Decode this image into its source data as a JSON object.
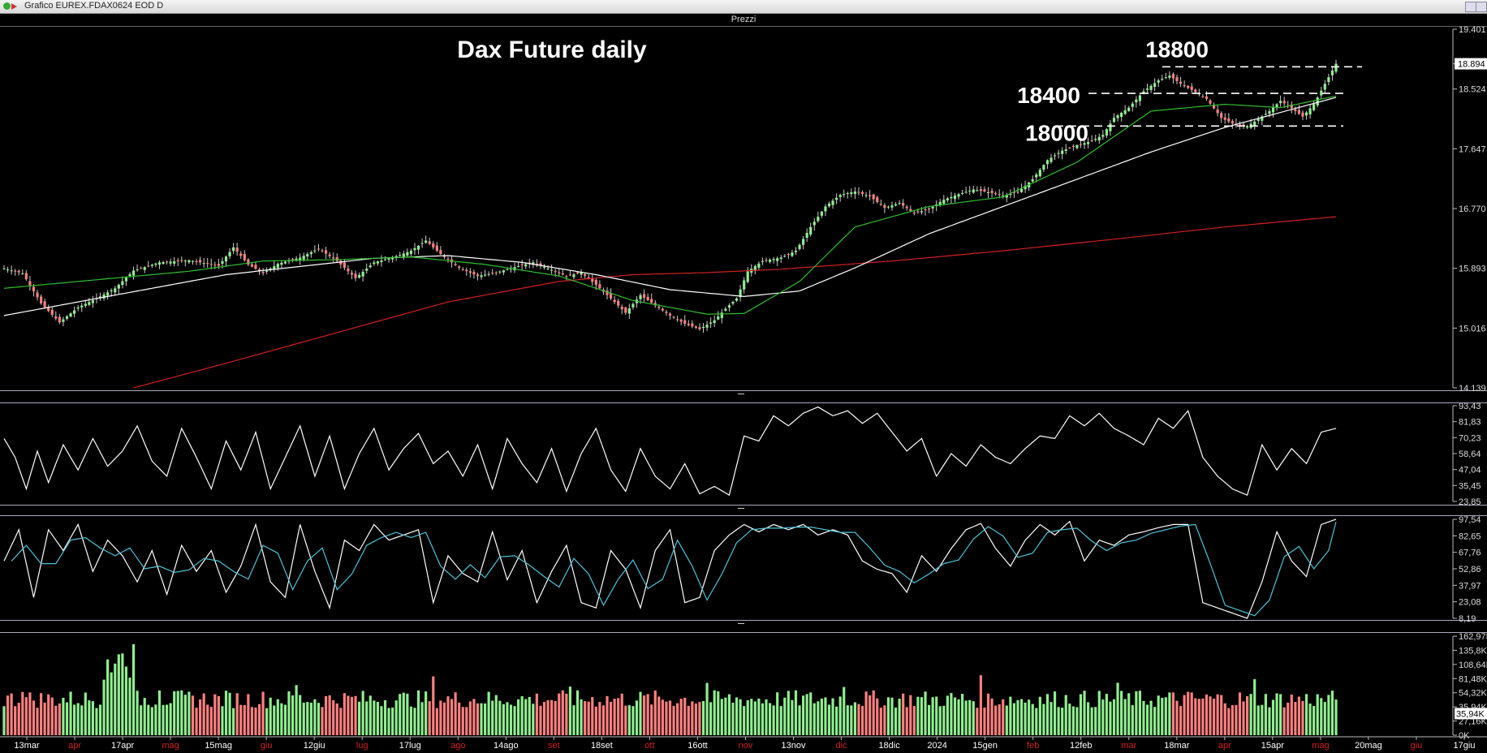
{
  "window": {
    "title": "Grafico EUREX.FDAX0624 EOD D",
    "pane_label": "Prezzi"
  },
  "colors": {
    "bull": "#90ee90",
    "bear": "#ff8080",
    "ma_short": "#2fbf2f",
    "ma_mid": "#ffffff",
    "ma_long": "#d42020",
    "osc": "#ffffff",
    "stoch_k": "#ffffff",
    "stoch_d": "#4fc3d9"
  },
  "chart_data": {
    "type": "candlestick",
    "title": "Dax Future daily",
    "x_labels": [
      {
        "label": "13mar",
        "color": "#ffffff"
      },
      {
        "label": "apr",
        "color": "#d42020"
      },
      {
        "label": "17apr",
        "color": "#ffffff"
      },
      {
        "label": "mag",
        "color": "#d42020"
      },
      {
        "label": "15mag",
        "color": "#ffffff"
      },
      {
        "label": "giu",
        "color": "#d42020"
      },
      {
        "label": "12giu",
        "color": "#ffffff"
      },
      {
        "label": "lug",
        "color": "#d42020"
      },
      {
        "label": "17lug",
        "color": "#ffffff"
      },
      {
        "label": "ago",
        "color": "#d42020"
      },
      {
        "label": "14ago",
        "color": "#ffffff"
      },
      {
        "label": "set",
        "color": "#d42020"
      },
      {
        "label": "18set",
        "color": "#ffffff"
      },
      {
        "label": "ott",
        "color": "#d42020"
      },
      {
        "label": "16ott",
        "color": "#ffffff"
      },
      {
        "label": "nov",
        "color": "#d42020"
      },
      {
        "label": "13nov",
        "color": "#ffffff"
      },
      {
        "label": "dic",
        "color": "#d42020"
      },
      {
        "label": "18dic",
        "color": "#ffffff"
      },
      {
        "label": "2024",
        "color": "#ffffff"
      },
      {
        "label": "15gen",
        "color": "#ffffff"
      },
      {
        "label": "feb",
        "color": "#d42020"
      },
      {
        "label": "12feb",
        "color": "#ffffff"
      },
      {
        "label": "mar",
        "color": "#d42020"
      },
      {
        "label": "18mar",
        "color": "#ffffff"
      },
      {
        "label": "apr",
        "color": "#d42020"
      },
      {
        "label": "15apr",
        "color": "#ffffff"
      },
      {
        "label": "mag",
        "color": "#d42020"
      },
      {
        "label": "20mag",
        "color": "#ffffff"
      },
      {
        "label": "giu",
        "color": "#d42020"
      },
      {
        "label": "17giu",
        "color": "#ffffff"
      }
    ],
    "price_axis": {
      "ticks": [
        "19.401",
        "18.894",
        "18.524",
        "17.647",
        "16.770",
        "15.893",
        "15.016",
        "14.139"
      ],
      "current": "18.894",
      "ylim": [
        14139,
        19401
      ]
    },
    "levels": [
      {
        "label": "18800",
        "value": 18850
      },
      {
        "label": "18400",
        "value": 18460
      },
      {
        "label": "18000",
        "value": 17980
      }
    ],
    "price_anchors": [
      [
        0,
        15890
      ],
      [
        5,
        15820
      ],
      [
        10,
        15380
      ],
      [
        15,
        15100
      ],
      [
        20,
        15320
      ],
      [
        25,
        15450
      ],
      [
        30,
        15600
      ],
      [
        35,
        15860
      ],
      [
        42,
        15980
      ],
      [
        50,
        16010
      ],
      [
        58,
        15930
      ],
      [
        62,
        16200
      ],
      [
        66,
        15950
      ],
      [
        70,
        15820
      ],
      [
        74,
        15960
      ],
      [
        80,
        16050
      ],
      [
        85,
        16180
      ],
      [
        90,
        16000
      ],
      [
        95,
        15750
      ],
      [
        100,
        15980
      ],
      [
        105,
        16050
      ],
      [
        110,
        16150
      ],
      [
        114,
        16300
      ],
      [
        118,
        16100
      ],
      [
        123,
        15900
      ],
      [
        128,
        15780
      ],
      [
        133,
        15830
      ],
      [
        138,
        15910
      ],
      [
        143,
        15980
      ],
      [
        148,
        15870
      ],
      [
        152,
        15780
      ],
      [
        156,
        15830
      ],
      [
        160,
        15650
      ],
      [
        164,
        15450
      ],
      [
        168,
        15240
      ],
      [
        172,
        15500
      ],
      [
        176,
        15350
      ],
      [
        180,
        15200
      ],
      [
        184,
        15080
      ],
      [
        188,
        15000
      ],
      [
        192,
        15130
      ],
      [
        195,
        15300
      ],
      [
        198,
        15450
      ],
      [
        201,
        15850
      ],
      [
        205,
        16000
      ],
      [
        210,
        16050
      ],
      [
        214,
        16150
      ],
      [
        218,
        16500
      ],
      [
        222,
        16800
      ],
      [
        226,
        16970
      ],
      [
        230,
        17020
      ],
      [
        234,
        16950
      ],
      [
        238,
        16780
      ],
      [
        242,
        16850
      ],
      [
        246,
        16700
      ],
      [
        250,
        16760
      ],
      [
        254,
        16900
      ],
      [
        258,
        16980
      ],
      [
        262,
        17050
      ],
      [
        266,
        17010
      ],
      [
        270,
        16960
      ],
      [
        274,
        17010
      ],
      [
        278,
        17200
      ],
      [
        282,
        17480
      ],
      [
        286,
        17620
      ],
      [
        290,
        17700
      ],
      [
        294,
        17760
      ],
      [
        297,
        17850
      ],
      [
        300,
        18100
      ],
      [
        304,
        18250
      ],
      [
        308,
        18490
      ],
      [
        312,
        18650
      ],
      [
        315,
        18720
      ],
      [
        318,
        18600
      ],
      [
        321,
        18510
      ],
      [
        325,
        18380
      ],
      [
        329,
        18100
      ],
      [
        333,
        17990
      ],
      [
        336,
        17980
      ],
      [
        339,
        18080
      ],
      [
        342,
        18200
      ],
      [
        345,
        18350
      ],
      [
        348,
        18240
      ],
      [
        351,
        18120
      ],
      [
        354,
        18300
      ],
      [
        357,
        18600
      ],
      [
        360,
        18894
      ]
    ],
    "ma_short_anchors": [
      [
        0,
        15600
      ],
      [
        30,
        15750
      ],
      [
        50,
        15850
      ],
      [
        70,
        16000
      ],
      [
        90,
        16020
      ],
      [
        110,
        16060
      ],
      [
        130,
        15950
      ],
      [
        150,
        15780
      ],
      [
        170,
        15420
      ],
      [
        190,
        15220
      ],
      [
        200,
        15230
      ],
      [
        215,
        15700
      ],
      [
        230,
        16500
      ],
      [
        250,
        16800
      ],
      [
        270,
        16940
      ],
      [
        290,
        17450
      ],
      [
        310,
        18200
      ],
      [
        330,
        18300
      ],
      [
        345,
        18250
      ],
      [
        360,
        18420
      ]
    ],
    "ma_mid_anchors": [
      [
        0,
        15200
      ],
      [
        20,
        15400
      ],
      [
        40,
        15600
      ],
      [
        60,
        15800
      ],
      [
        80,
        15920
      ],
      [
        100,
        16040
      ],
      [
        120,
        16080
      ],
      [
        140,
        15980
      ],
      [
        160,
        15800
      ],
      [
        180,
        15580
      ],
      [
        200,
        15480
      ],
      [
        215,
        15560
      ],
      [
        230,
        15900
      ],
      [
        250,
        16400
      ],
      [
        270,
        16800
      ],
      [
        290,
        17200
      ],
      [
        310,
        17600
      ],
      [
        330,
        17960
      ],
      [
        345,
        18180
      ],
      [
        360,
        18400
      ]
    ],
    "ma_long_anchors": [
      [
        35,
        14139
      ],
      [
        60,
        14500
      ],
      [
        90,
        14950
      ],
      [
        120,
        15400
      ],
      [
        150,
        15700
      ],
      [
        170,
        15800
      ],
      [
        190,
        15830
      ],
      [
        210,
        15880
      ],
      [
        240,
        16000
      ],
      [
        270,
        16150
      ],
      [
        300,
        16320
      ],
      [
        330,
        16500
      ],
      [
        360,
        16650
      ]
    ],
    "osc_axis": {
      "ticks": [
        "93,43",
        "81,83",
        "70,23",
        "58,64",
        "47,04",
        "35,45",
        "23,85"
      ],
      "ylim": [
        20,
        96
      ]
    },
    "osc_anchors": [
      [
        0,
        70
      ],
      [
        3,
        55
      ],
      [
        6,
        30
      ],
      [
        9,
        60
      ],
      [
        12,
        35
      ],
      [
        16,
        65
      ],
      [
        20,
        45
      ],
      [
        24,
        70
      ],
      [
        28,
        48
      ],
      [
        32,
        60
      ],
      [
        36,
        80
      ],
      [
        40,
        52
      ],
      [
        44,
        40
      ],
      [
        48,
        78
      ],
      [
        52,
        55
      ],
      [
        56,
        30
      ],
      [
        60,
        68
      ],
      [
        64,
        45
      ],
      [
        68,
        75
      ],
      [
        72,
        30
      ],
      [
        76,
        55
      ],
      [
        80,
        80
      ],
      [
        84,
        40
      ],
      [
        88,
        72
      ],
      [
        92,
        30
      ],
      [
        96,
        58
      ],
      [
        100,
        78
      ],
      [
        104,
        45
      ],
      [
        108,
        62
      ],
      [
        112,
        74
      ],
      [
        116,
        50
      ],
      [
        120,
        60
      ],
      [
        124,
        40
      ],
      [
        128,
        65
      ],
      [
        132,
        30
      ],
      [
        136,
        70
      ],
      [
        140,
        50
      ],
      [
        144,
        35
      ],
      [
        148,
        62
      ],
      [
        152,
        28
      ],
      [
        156,
        58
      ],
      [
        160,
        78
      ],
      [
        164,
        45
      ],
      [
        168,
        28
      ],
      [
        172,
        62
      ],
      [
        176,
        40
      ],
      [
        180,
        30
      ],
      [
        184,
        50
      ],
      [
        188,
        26
      ],
      [
        192,
        32
      ],
      [
        196,
        25
      ],
      [
        200,
        72
      ],
      [
        204,
        68
      ],
      [
        208,
        88
      ],
      [
        212,
        80
      ],
      [
        216,
        90
      ],
      [
        220,
        95
      ],
      [
        224,
        88
      ],
      [
        228,
        92
      ],
      [
        232,
        82
      ],
      [
        236,
        90
      ],
      [
        240,
        75
      ],
      [
        244,
        60
      ],
      [
        248,
        70
      ],
      [
        252,
        40
      ],
      [
        256,
        58
      ],
      [
        260,
        48
      ],
      [
        264,
        65
      ],
      [
        268,
        55
      ],
      [
        272,
        50
      ],
      [
        276,
        62
      ],
      [
        280,
        72
      ],
      [
        284,
        70
      ],
      [
        288,
        88
      ],
      [
        292,
        80
      ],
      [
        296,
        90
      ],
      [
        300,
        78
      ],
      [
        304,
        72
      ],
      [
        308,
        65
      ],
      [
        312,
        86
      ],
      [
        316,
        78
      ],
      [
        320,
        92
      ],
      [
        324,
        55
      ],
      [
        328,
        40
      ],
      [
        332,
        30
      ],
      [
        336,
        25
      ],
      [
        340,
        65
      ],
      [
        344,
        45
      ],
      [
        348,
        62
      ],
      [
        352,
        50
      ],
      [
        356,
        75
      ],
      [
        360,
        78
      ]
    ],
    "stoch_axis": {
      "ticks": [
        "97,54",
        "82,65",
        "67,76",
        "52,86",
        "37,97",
        "23,08",
        "8,19"
      ],
      "ylim": [
        5,
        100
      ]
    },
    "stoch_anchors": [
      [
        0,
        60
      ],
      [
        4,
        90
      ],
      [
        8,
        25
      ],
      [
        12,
        90
      ],
      [
        16,
        70
      ],
      [
        20,
        95
      ],
      [
        24,
        50
      ],
      [
        28,
        80
      ],
      [
        32,
        65
      ],
      [
        36,
        40
      ],
      [
        40,
        70
      ],
      [
        44,
        28
      ],
      [
        48,
        75
      ],
      [
        52,
        50
      ],
      [
        56,
        70
      ],
      [
        60,
        30
      ],
      [
        64,
        55
      ],
      [
        68,
        95
      ],
      [
        72,
        40
      ],
      [
        76,
        25
      ],
      [
        80,
        95
      ],
      [
        84,
        50
      ],
      [
        88,
        15
      ],
      [
        92,
        80
      ],
      [
        96,
        70
      ],
      [
        100,
        95
      ],
      [
        104,
        80
      ],
      [
        108,
        85
      ],
      [
        112,
        90
      ],
      [
        116,
        20
      ],
      [
        120,
        65
      ],
      [
        124,
        48
      ],
      [
        128,
        40
      ],
      [
        132,
        88
      ],
      [
        136,
        42
      ],
      [
        140,
        70
      ],
      [
        144,
        20
      ],
      [
        148,
        50
      ],
      [
        152,
        75
      ],
      [
        156,
        20
      ],
      [
        160,
        15
      ],
      [
        164,
        70
      ],
      [
        168,
        52
      ],
      [
        172,
        15
      ],
      [
        176,
        70
      ],
      [
        180,
        90
      ],
      [
        184,
        20
      ],
      [
        188,
        25
      ],
      [
        192,
        70
      ],
      [
        196,
        85
      ],
      [
        200,
        95
      ],
      [
        204,
        88
      ],
      [
        208,
        95
      ],
      [
        212,
        90
      ],
      [
        216,
        95
      ],
      [
        220,
        85
      ],
      [
        224,
        90
      ],
      [
        228,
        85
      ],
      [
        232,
        60
      ],
      [
        236,
        52
      ],
      [
        240,
        48
      ],
      [
        244,
        30
      ],
      [
        248,
        65
      ],
      [
        252,
        50
      ],
      [
        256,
        72
      ],
      [
        260,
        90
      ],
      [
        264,
        96
      ],
      [
        268,
        72
      ],
      [
        272,
        55
      ],
      [
        276,
        80
      ],
      [
        280,
        95
      ],
      [
        284,
        85
      ],
      [
        288,
        98
      ],
      [
        292,
        60
      ],
      [
        296,
        80
      ],
      [
        300,
        75
      ],
      [
        304,
        85
      ],
      [
        308,
        88
      ],
      [
        312,
        92
      ],
      [
        316,
        95
      ],
      [
        320,
        95
      ],
      [
        324,
        20
      ],
      [
        328,
        15
      ],
      [
        332,
        10
      ],
      [
        336,
        5
      ],
      [
        340,
        40
      ],
      [
        344,
        88
      ],
      [
        348,
        60
      ],
      [
        352,
        45
      ],
      [
        356,
        95
      ],
      [
        360,
        100
      ]
    ],
    "volume_axis": {
      "ticks": [
        "162,97K",
        "135,8K",
        "108,64K",
        "81,48K",
        "54,32K",
        "35,94K",
        "27,16K",
        "0K"
      ],
      "current": "35,94K",
      "ylim": [
        0,
        165000
      ]
    }
  }
}
